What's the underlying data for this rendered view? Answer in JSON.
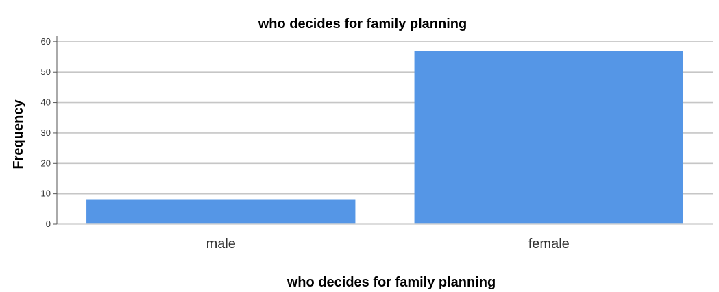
{
  "chart_data": {
    "type": "bar",
    "title": "who decides for family planning",
    "xlabel": "who decides for family planning",
    "ylabel": "Frequency",
    "categories": [
      "male",
      "female"
    ],
    "values": [
      8,
      57
    ],
    "ylim": [
      0,
      62
    ],
    "yticks": [
      0,
      10,
      20,
      30,
      40,
      50,
      60
    ],
    "grid": true,
    "legend": "none",
    "colors": {
      "bar": "#5596e6",
      "grid": "#c6c6c6",
      "axis": "#555555"
    }
  }
}
